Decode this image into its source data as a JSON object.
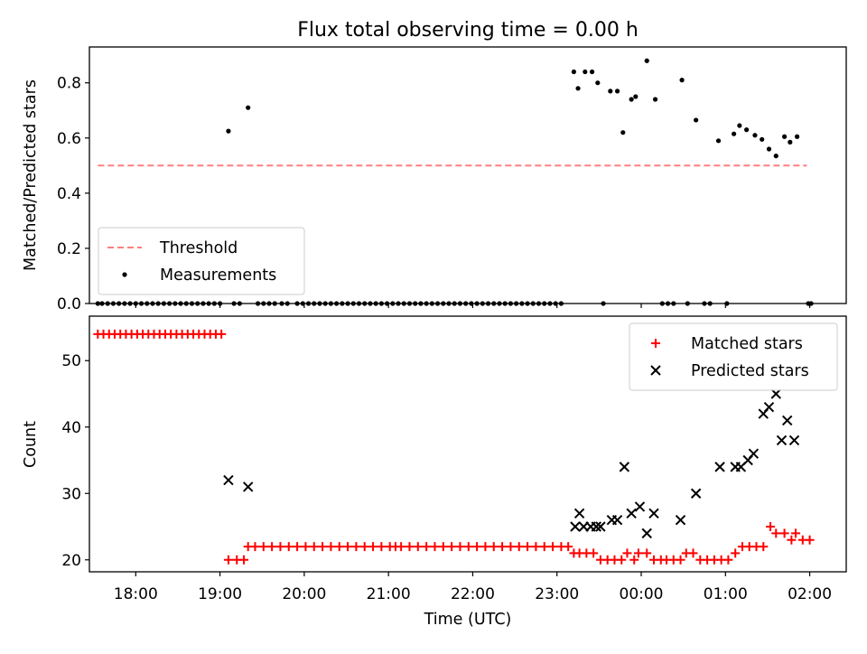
{
  "chart_data": [
    {
      "type": "scatter",
      "title": "Flux total observing time = 0.00 h",
      "xlabel": "",
      "ylabel": "Matched/Predicted stars",
      "xlim": [
        "17:27",
        "02:26"
      ],
      "ylim": [
        0,
        0.93
      ],
      "yticks": [
        0.0,
        0.2,
        0.4,
        0.6,
        0.8
      ],
      "ytick_labels": [
        "0.0",
        "0.2",
        "0.4",
        "0.6",
        "0.8"
      ],
      "xticks": [
        "18:00",
        "19:00",
        "20:00",
        "21:00",
        "22:00",
        "23:00",
        "00:00",
        "01:00",
        "02:00"
      ],
      "show_xtick_labels": false,
      "grid": false,
      "legend_position": "lower-left",
      "threshold": {
        "name": "Threshold",
        "color": "#ff7f7f",
        "value": 0.5,
        "x_range": [
          "17:33",
          "01:58"
        ]
      },
      "series": [
        {
          "name": "Measurements",
          "marker": "dot",
          "color": "#000000",
          "points": [
            [
              "17:33",
              0
            ],
            [
              "17:36",
              0
            ],
            [
              "17:40",
              0
            ],
            [
              "17:44",
              0
            ],
            [
              "17:48",
              0
            ],
            [
              "17:52",
              0
            ],
            [
              "17:56",
              0
            ],
            [
              "18:00",
              0
            ],
            [
              "18:04",
              0
            ],
            [
              "18:08",
              0
            ],
            [
              "18:12",
              0
            ],
            [
              "18:16",
              0
            ],
            [
              "18:20",
              0
            ],
            [
              "18:24",
              0
            ],
            [
              "18:28",
              0
            ],
            [
              "18:32",
              0
            ],
            [
              "18:36",
              0
            ],
            [
              "18:40",
              0
            ],
            [
              "18:44",
              0
            ],
            [
              "18:48",
              0
            ],
            [
              "18:52",
              0
            ],
            [
              "18:56",
              0
            ],
            [
              "19:00",
              0
            ],
            [
              "19:06",
              0.625
            ],
            [
              "19:10",
              0
            ],
            [
              "19:14",
              0
            ],
            [
              "19:20",
              0.71
            ],
            [
              "19:27",
              0
            ],
            [
              "19:31",
              0
            ],
            [
              "19:35",
              0
            ],
            [
              "19:39",
              0
            ],
            [
              "19:44",
              0
            ],
            [
              "19:48",
              0
            ],
            [
              "19:55",
              0
            ],
            [
              "19:59",
              0
            ],
            [
              "20:03",
              0
            ],
            [
              "20:07",
              0
            ],
            [
              "20:11",
              0
            ],
            [
              "20:15",
              0
            ],
            [
              "20:19",
              0
            ],
            [
              "20:23",
              0
            ],
            [
              "20:27",
              0
            ],
            [
              "20:31",
              0
            ],
            [
              "20:35",
              0
            ],
            [
              "20:39",
              0
            ],
            [
              "20:43",
              0
            ],
            [
              "20:47",
              0
            ],
            [
              "20:51",
              0
            ],
            [
              "20:55",
              0
            ],
            [
              "20:59",
              0
            ],
            [
              "21:03",
              0
            ],
            [
              "21:07",
              0
            ],
            [
              "21:11",
              0
            ],
            [
              "21:15",
              0
            ],
            [
              "21:19",
              0
            ],
            [
              "21:23",
              0
            ],
            [
              "21:27",
              0
            ],
            [
              "21:31",
              0
            ],
            [
              "21:35",
              0
            ],
            [
              "21:39",
              0
            ],
            [
              "21:43",
              0
            ],
            [
              "21:47",
              0
            ],
            [
              "21:51",
              0
            ],
            [
              "21:55",
              0
            ],
            [
              "21:59",
              0
            ],
            [
              "22:03",
              0
            ],
            [
              "22:07",
              0
            ],
            [
              "22:11",
              0
            ],
            [
              "22:15",
              0
            ],
            [
              "22:19",
              0
            ],
            [
              "22:23",
              0
            ],
            [
              "22:27",
              0
            ],
            [
              "22:31",
              0
            ],
            [
              "22:35",
              0
            ],
            [
              "22:39",
              0
            ],
            [
              "22:43",
              0
            ],
            [
              "22:47",
              0
            ],
            [
              "22:51",
              0
            ],
            [
              "22:55",
              0
            ],
            [
              "22:59",
              0
            ],
            [
              "23:03",
              0
            ],
            [
              "23:12",
              0.84
            ],
            [
              "23:15",
              0.78
            ],
            [
              "23:20",
              0.84
            ],
            [
              "23:25",
              0.84
            ],
            [
              "23:29",
              0.8
            ],
            [
              "23:33",
              0
            ],
            [
              "23:38",
              0.77
            ],
            [
              "23:43",
              0.77
            ],
            [
              "23:47",
              0.62
            ],
            [
              "23:53",
              0.74
            ],
            [
              "23:56",
              0.75
            ],
            [
              "00:04",
              0.88
            ],
            [
              "00:10",
              0.74
            ],
            [
              "00:15",
              0
            ],
            [
              "00:19",
              0
            ],
            [
              "00:23",
              0
            ],
            [
              "00:29",
              0.81
            ],
            [
              "00:33",
              0
            ],
            [
              "00:39",
              0.665
            ],
            [
              "00:45",
              0
            ],
            [
              "00:49",
              0
            ],
            [
              "00:55",
              0.59
            ],
            [
              "01:01",
              0
            ],
            [
              "01:06",
              0.615
            ],
            [
              "01:10",
              0.645
            ],
            [
              "01:15",
              0.63
            ],
            [
              "01:21",
              0.61
            ],
            [
              "01:26",
              0.595
            ],
            [
              "01:31",
              0.56
            ],
            [
              "01:36",
              0.535
            ],
            [
              "01:42",
              0.605
            ],
            [
              "01:46",
              0.585
            ],
            [
              "01:51",
              0.605
            ],
            [
              "01:59",
              0
            ],
            [
              "02:01",
              0
            ]
          ]
        }
      ]
    },
    {
      "type": "scatter",
      "title": "",
      "xlabel": "Time (UTC)",
      "ylabel": "Count",
      "xlim": [
        "17:27",
        "02:26"
      ],
      "ylim": [
        18.2,
        56.7
      ],
      "yticks": [
        20,
        30,
        40,
        50
      ],
      "ytick_labels": [
        "20",
        "30",
        "40",
        "50"
      ],
      "xticks": [
        "18:00",
        "19:00",
        "20:00",
        "21:00",
        "22:00",
        "23:00",
        "00:00",
        "01:00",
        "02:00"
      ],
      "xtick_labels": [
        "18:00",
        "19:00",
        "20:00",
        "21:00",
        "22:00",
        "23:00",
        "00:00",
        "01:00",
        "02:00"
      ],
      "grid": false,
      "legend_position": "upper-right",
      "series": [
        {
          "name": "Matched stars",
          "marker": "plus",
          "color": "#ff0000",
          "points": [
            [
              "17:33",
              54
            ],
            [
              "17:37",
              54
            ],
            [
              "17:41",
              54
            ],
            [
              "17:45",
              54
            ],
            [
              "17:49",
              54
            ],
            [
              "17:53",
              54
            ],
            [
              "17:57",
              54
            ],
            [
              "18:01",
              54
            ],
            [
              "18:05",
              54
            ],
            [
              "18:09",
              54
            ],
            [
              "18:13",
              54
            ],
            [
              "18:17",
              54
            ],
            [
              "18:21",
              54
            ],
            [
              "18:25",
              54
            ],
            [
              "18:29",
              54
            ],
            [
              "18:33",
              54
            ],
            [
              "18:37",
              54
            ],
            [
              "18:41",
              54
            ],
            [
              "18:45",
              54
            ],
            [
              "18:49",
              54
            ],
            [
              "18:53",
              54
            ],
            [
              "18:57",
              54
            ],
            [
              "19:01",
              54
            ],
            [
              "19:06",
              20
            ],
            [
              "19:12",
              20
            ],
            [
              "19:17",
              20
            ],
            [
              "19:20",
              22
            ],
            [
              "19:25",
              22
            ],
            [
              "19:31",
              22
            ],
            [
              "19:37",
              22
            ],
            [
              "19:43",
              22
            ],
            [
              "19:49",
              22
            ],
            [
              "19:55",
              22
            ],
            [
              "20:01",
              22
            ],
            [
              "20:07",
              22
            ],
            [
              "20:13",
              22
            ],
            [
              "20:19",
              22
            ],
            [
              "20:25",
              22
            ],
            [
              "20:31",
              22
            ],
            [
              "20:37",
              22
            ],
            [
              "20:43",
              22
            ],
            [
              "20:49",
              22
            ],
            [
              "20:55",
              22
            ],
            [
              "21:01",
              22
            ],
            [
              "21:05",
              22
            ],
            [
              "21:09",
              22
            ],
            [
              "21:15",
              22
            ],
            [
              "21:21",
              22
            ],
            [
              "21:27",
              22
            ],
            [
              "21:33",
              22
            ],
            [
              "21:39",
              22
            ],
            [
              "21:45",
              22
            ],
            [
              "21:51",
              22
            ],
            [
              "21:57",
              22
            ],
            [
              "22:03",
              22
            ],
            [
              "22:09",
              22
            ],
            [
              "22:15",
              22
            ],
            [
              "22:21",
              22
            ],
            [
              "22:27",
              22
            ],
            [
              "22:33",
              22
            ],
            [
              "22:39",
              22
            ],
            [
              "22:45",
              22
            ],
            [
              "22:51",
              22
            ],
            [
              "22:57",
              22
            ],
            [
              "23:03",
              22
            ],
            [
              "23:08",
              22
            ],
            [
              "23:12",
              21
            ],
            [
              "23:16",
              21
            ],
            [
              "23:21",
              21
            ],
            [
              "23:26",
              21
            ],
            [
              "23:31",
              20
            ],
            [
              "23:36",
              20
            ],
            [
              "23:41",
              20
            ],
            [
              "23:46",
              20
            ],
            [
              "23:50",
              21
            ],
            [
              "23:55",
              20
            ],
            [
              "23:58",
              21
            ],
            [
              "00:04",
              21
            ],
            [
              "00:09",
              20
            ],
            [
              "00:14",
              20
            ],
            [
              "00:18",
              20
            ],
            [
              "00:23",
              20
            ],
            [
              "00:28",
              20
            ],
            [
              "00:32",
              21
            ],
            [
              "00:37",
              21
            ],
            [
              "00:42",
              20
            ],
            [
              "00:47",
              20
            ],
            [
              "00:52",
              20
            ],
            [
              "00:57",
              20
            ],
            [
              "01:02",
              20
            ],
            [
              "01:07",
              21
            ],
            [
              "01:12",
              22
            ],
            [
              "01:17",
              22
            ],
            [
              "01:22",
              22
            ],
            [
              "01:27",
              22
            ],
            [
              "01:32",
              25
            ],
            [
              "01:36",
              24
            ],
            [
              "01:42",
              24
            ],
            [
              "01:47",
              23
            ],
            [
              "01:50",
              24
            ],
            [
              "01:55",
              23
            ],
            [
              "02:00",
              23
            ]
          ]
        },
        {
          "name": "Predicted stars",
          "marker": "x",
          "color": "#000000",
          "points": [
            [
              "19:06",
              32
            ],
            [
              "19:20",
              31
            ],
            [
              "23:13",
              25
            ],
            [
              "23:16",
              27
            ],
            [
              "23:19",
              25
            ],
            [
              "23:24",
              25
            ],
            [
              "23:28",
              25
            ],
            [
              "23:31",
              25
            ],
            [
              "23:39",
              26
            ],
            [
              "23:43",
              26
            ],
            [
              "23:48",
              34
            ],
            [
              "23:53",
              27
            ],
            [
              "23:59",
              28
            ],
            [
              "00:04",
              24
            ],
            [
              "00:09",
              27
            ],
            [
              "00:28",
              26
            ],
            [
              "00:39",
              30
            ],
            [
              "00:56",
              34
            ],
            [
              "01:07",
              34
            ],
            [
              "01:11",
              34
            ],
            [
              "01:16",
              35
            ],
            [
              "01:20",
              36
            ],
            [
              "01:27",
              42
            ],
            [
              "01:31",
              43
            ],
            [
              "01:36",
              45
            ],
            [
              "01:40",
              38
            ],
            [
              "01:44",
              41
            ],
            [
              "01:49",
              38
            ]
          ]
        }
      ]
    }
  ]
}
